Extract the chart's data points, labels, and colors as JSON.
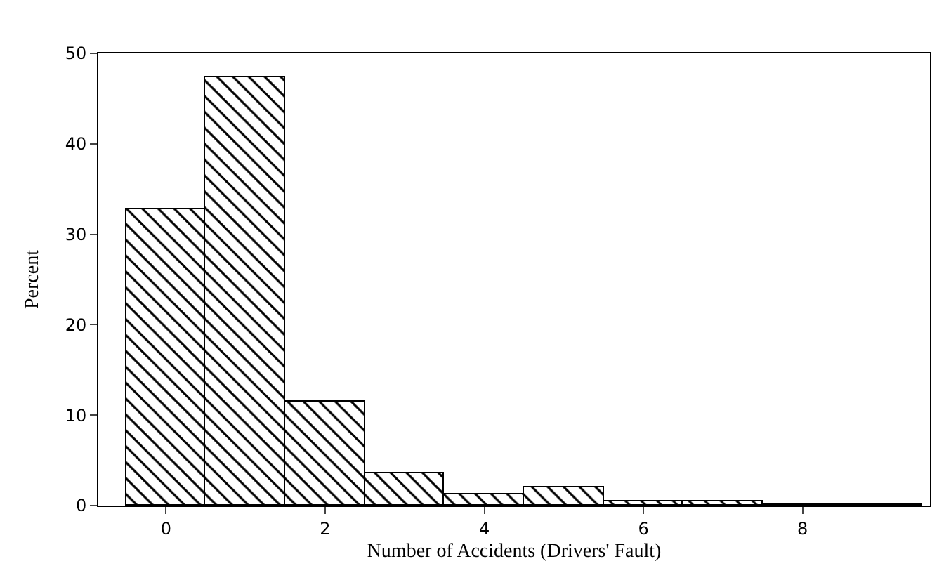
{
  "chart_data": {
    "type": "histogram",
    "xlabel": "Number of Accidents (Drivers' Fault)",
    "ylabel": "Percent",
    "bins": [
      -0.5,
      0.5,
      1.5,
      2.5,
      3.5,
      4.5,
      5.5,
      6.5,
      7.5,
      8.5,
      9.5
    ],
    "values": [
      32.8,
      47.3,
      11.5,
      3.5,
      1.3,
      2.0,
      0.4,
      0.4,
      0.2,
      0.2
    ],
    "color": "#000000",
    "xlim": [
      -0.85,
      9.6
    ],
    "xticks": [
      0,
      2,
      4,
      6,
      8
    ],
    "ylim": [
      0,
      50
    ],
    "yticks": [
      0,
      10,
      20,
      30,
      40,
      50
    ]
  }
}
